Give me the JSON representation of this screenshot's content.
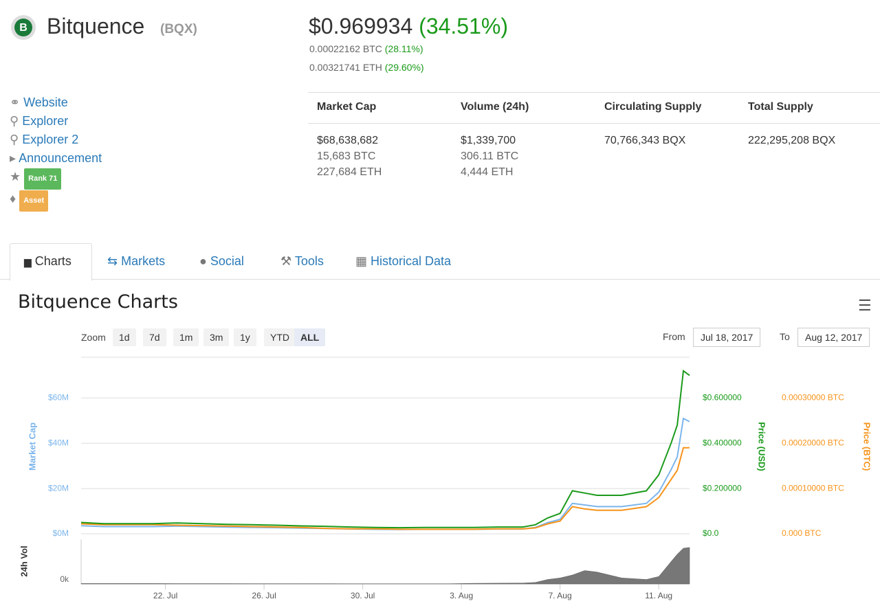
{
  "header": {
    "name": "Bitquence",
    "symbol": "(BQX)",
    "price": "$0.969934",
    "change": "(34.51%)",
    "btc": "0.00022162 BTC",
    "btc_change": "(28.11%)",
    "eth": "0.00321741 ETH",
    "eth_change": "(29.60%)"
  },
  "links": [
    "Website",
    "Explorer",
    "Explorer 2",
    "Announcement"
  ],
  "badges": [
    "Rank 71",
    "Asset"
  ],
  "stats": [
    {
      "title": "Market Cap",
      "lines": [
        "$68,638,682",
        "15,683 BTC",
        "227,684 ETH"
      ]
    },
    {
      "title": "Volume (24h)",
      "lines": [
        "$1,339,700",
        "306.11 BTC",
        "4,444 ETH"
      ]
    },
    {
      "title": "Circulating Supply",
      "lines": [
        "70,766,343 BQX"
      ]
    },
    {
      "title": "Total Supply",
      "lines": [
        "222,295,208 BQX"
      ]
    }
  ],
  "tabs": [
    "Charts",
    "Markets",
    "Social",
    "Tools",
    "Historical Data"
  ],
  "chart_section": {
    "title": "Bitquence Charts",
    "zoom_label": "Zoom",
    "zoom": [
      "1d",
      "7d",
      "1m",
      "3m",
      "1y",
      "YTD",
      "ALL"
    ],
    "from_label": "From",
    "from": "Jul 18, 2017",
    "to_label": "To",
    "to": "Aug 12, 2017"
  },
  "chart_data": {
    "type": "line",
    "x": [
      "2017-07-18T14:00",
      "2017-07-19T12:00",
      "2017-07-20T12:00",
      "2017-07-21T12:00",
      "2017-07-22T12:00",
      "2017-07-23T12:00",
      "2017-07-24T12:00",
      "2017-07-25T12:00",
      "2017-07-26T12:00",
      "2017-07-27T12:00",
      "2017-07-28T12:00",
      "2017-07-29T12:00",
      "2017-07-30T12:00",
      "2017-07-31T12:00",
      "2017-08-01T12:00",
      "2017-08-02T12:00",
      "2017-08-03T12:00",
      "2017-08-04T12:00",
      "2017-08-05T12:00",
      "2017-08-06T00:00",
      "2017-08-06T12:00",
      "2017-08-07T00:00",
      "2017-08-07T12:00",
      "2017-08-08T00:00",
      "2017-08-08T12:00",
      "2017-08-09T12:00",
      "2017-08-10T12:00",
      "2017-08-11T00:00",
      "2017-08-11T12:00",
      "2017-08-11T18:00",
      "2017-08-12T00:00",
      "2017-08-12T06:00"
    ],
    "xlim": [
      "2017-07-18T14:00",
      "2017-08-12T06:00"
    ],
    "xticks": [
      {
        "value": "2017-07-22T00:00",
        "label": "22. Jul"
      },
      {
        "value": "2017-07-26T00:00",
        "label": "26. Jul"
      },
      {
        "value": "2017-07-30T00:00",
        "label": "30. Jul"
      },
      {
        "value": "2017-08-03T00:00",
        "label": "3. Aug"
      },
      {
        "value": "2017-08-07T00:00",
        "label": "7. Aug"
      },
      {
        "value": "2017-08-11T00:00",
        "label": "11. Aug"
      }
    ],
    "ylim": [
      0,
      78000000
    ],
    "yticks": [
      {
        "value": 0,
        "label": "$0M"
      },
      {
        "value": 20000000,
        "label": "$20M"
      },
      {
        "value": 40000000,
        "label": "$40M"
      },
      {
        "value": 60000000,
        "label": "$60M"
      }
    ],
    "y2lim": [
      0,
      0.78
    ],
    "y2ticks": [
      {
        "value": 0,
        "label": "$0.0"
      },
      {
        "value": 0.2,
        "label": "$0.200000"
      },
      {
        "value": 0.4,
        "label": "$0.400000"
      },
      {
        "value": 0.6,
        "label": "$0.600000"
      }
    ],
    "y3lim": [
      0,
      0.00039
    ],
    "y3ticks": [
      {
        "value": 0,
        "label": "0.000 BTC"
      },
      {
        "value": 0.0001,
        "label": "0.00010000 BTC"
      },
      {
        "value": 0.0002,
        "label": "0.00020000 BTC"
      },
      {
        "value": 0.0003,
        "label": "0.00030000 BTC"
      }
    ],
    "y4lim": [
      0,
      3000000
    ],
    "y4ticks": [
      {
        "value": 0,
        "label": "0k"
      }
    ],
    "grid": true,
    "series": [
      {
        "name": "Market Cap",
        "color": "#7cb5ec",
        "axis": "y",
        "values": [
          3540000,
          3180000,
          3180000,
          3180000,
          3400000,
          3180000,
          2970000,
          2830000,
          2690000,
          2480000,
          2340000,
          2120000,
          1980000,
          1910000,
          1980000,
          1980000,
          1980000,
          2120000,
          2120000,
          2830000,
          4950000,
          6370000,
          13450000,
          12740000,
          12030000,
          12030000,
          13450000,
          18400000,
          28310000,
          33970000,
          50950000,
          49540000
        ]
      },
      {
        "name": "Price (USD)",
        "color": "#1a9a1a",
        "axis": "y2",
        "values": [
          0.05,
          0.045,
          0.045,
          0.045,
          0.048,
          0.045,
          0.042,
          0.04,
          0.038,
          0.035,
          0.033,
          0.03,
          0.028,
          0.027,
          0.028,
          0.028,
          0.028,
          0.03,
          0.03,
          0.04,
          0.07,
          0.09,
          0.19,
          0.18,
          0.17,
          0.17,
          0.19,
          0.26,
          0.4,
          0.48,
          0.72,
          0.7
        ]
      },
      {
        "name": "Price (BTC)",
        "color": "#f7931a",
        "axis": "y3",
        "values": [
          2.2e-05,
          2e-05,
          2e-05,
          2e-05,
          1.9e-05,
          1.8e-05,
          1.7e-05,
          1.6e-05,
          1.5e-05,
          1.4e-05,
          1.2e-05,
          1.1e-05,
          1.1e-05,
          1e-05,
          1e-05,
          1e-05,
          1e-05,
          1.1e-05,
          1.1e-05,
          1.3e-05,
          2.2e-05,
          2.8e-05,
          6e-05,
          5.5e-05,
          5.2e-05,
          5.2e-05,
          6e-05,
          8e-05,
          0.00012,
          0.00014,
          0.00019,
          0.00019
        ]
      },
      {
        "name": "24h Vol",
        "color": "#777777",
        "axis": "y4",
        "values": [
          30000,
          30000,
          28000,
          26000,
          25000,
          24000,
          22000,
          20000,
          20000,
          18000,
          18000,
          16000,
          16000,
          15000,
          15000,
          16000,
          40000,
          50000,
          60000,
          100000,
          300000,
          400000,
          600000,
          900000,
          800000,
          400000,
          300000,
          500000,
          1500000,
          2000000,
          2400000,
          2450000
        ]
      }
    ]
  }
}
